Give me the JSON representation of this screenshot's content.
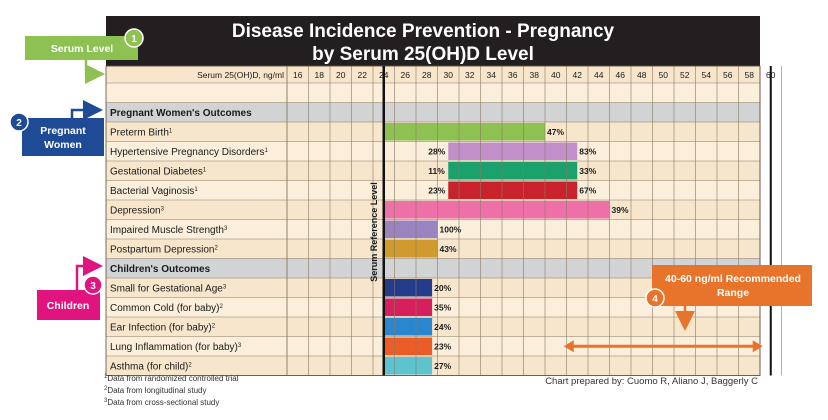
{
  "title_line1": "Disease Incidence Prevention - Pregnancy",
  "title_line2": "by Serum 25(OH)D Level",
  "axis_label": "Serum 25(OH)D, ng/ml",
  "reference_label": "Serum Reference Level",
  "credit": "Chart prepared by: Cuomo R, Aliano J, Baggerly C",
  "footnotes": [
    {
      "num": "1",
      "text": "Data from randomized controlled trial"
    },
    {
      "num": "2",
      "text": "Data from longitudinal study"
    },
    {
      "num": "3",
      "text": "Data from cross-sectional study"
    }
  ],
  "callouts": {
    "serum_level": {
      "label": "Serum Level",
      "badge": "1",
      "color": "#8dc152"
    },
    "pregnant_women": {
      "label_line1": "Pregnant",
      "label_line2": "Women",
      "badge": "2",
      "color": "#1f4a96"
    },
    "children": {
      "label": "Children",
      "badge": "3",
      "color": "#e0137f"
    },
    "recommended": {
      "label_line1": "40-60 ng/ml Recommended",
      "label_line2": "Range",
      "badge": "4",
      "color": "#e8732a"
    }
  },
  "chart_data": {
    "type": "bar",
    "orientation": "horizontal-range",
    "title": "Disease Incidence Prevention - Pregnancy by Serum 25(OH)D Level",
    "xlabel": "Serum 25(OH)D, ng/ml",
    "x_ticks": [
      16,
      18,
      20,
      22,
      24,
      26,
      28,
      30,
      32,
      34,
      36,
      38,
      40,
      42,
      44,
      46,
      48,
      50,
      52,
      54,
      56,
      58,
      60
    ],
    "reference_level": 25,
    "recommended_range": [
      40,
      60
    ],
    "sections": [
      {
        "name": "Pregnant Women's Outcomes",
        "rows": [
          {
            "label": "Preterm Birth",
            "sup": "1",
            "start": 25,
            "end": 40,
            "label_at": "end",
            "pct": "47%",
            "color": "#8dc152"
          },
          {
            "label": "Hypertensive Pregnancy Disorders",
            "sup": "1",
            "start": 31,
            "end": 43,
            "label_at": "both",
            "pct_start": "28%",
            "pct": "83%",
            "color": "#c28fc9"
          },
          {
            "label": "Gestational Diabetes",
            "sup": "1",
            "start": 31,
            "end": 43,
            "label_at": "both",
            "pct_start": "11%",
            "pct": "33%",
            "color": "#1aa16d"
          },
          {
            "label": "Bacterial Vaginosis",
            "sup": "1",
            "start": 31,
            "end": 43,
            "label_at": "both",
            "pct_start": "23%",
            "pct": "67%",
            "color": "#c8232d"
          },
          {
            "label": "Depression",
            "sup": "3",
            "start": 25,
            "end": 46,
            "label_at": "end",
            "pct": "39%",
            "color": "#ef6fa8"
          },
          {
            "label": "Impaired Muscle Strength",
            "sup": "3",
            "start": 25,
            "end": 30,
            "label_at": "end",
            "pct": "100%",
            "color": "#9b83bf"
          },
          {
            "label": "Postpartum Depression",
            "sup": "2",
            "start": 25,
            "end": 30,
            "label_at": "end",
            "pct": "43%",
            "color": "#d19a2e"
          }
        ]
      },
      {
        "name": "Children's Outcomes",
        "rows": [
          {
            "label": "Small for Gestational Age",
            "sup": "3",
            "start": 25,
            "end": 29.5,
            "label_at": "end",
            "pct": "20%",
            "color": "#233d8c"
          },
          {
            "label": "Common Cold (for baby)",
            "sup": "2",
            "start": 25,
            "end": 29.5,
            "label_at": "end",
            "pct": "35%",
            "color": "#d81f5e"
          },
          {
            "label": "Ear Infection (for baby)",
            "sup": "2",
            "start": 25,
            "end": 29.5,
            "label_at": "end",
            "pct": "24%",
            "color": "#2a87cf"
          },
          {
            "label": "Lung Inflammation (for baby)",
            "sup": "3",
            "start": 25,
            "end": 29.5,
            "label_at": "end",
            "pct": "23%",
            "color": "#eb5c27"
          },
          {
            "label": "Asthma (for child)",
            "sup": "2",
            "start": 25,
            "end": 29.5,
            "label_at": "end",
            "pct": "27%",
            "color": "#5cc3cf"
          }
        ]
      }
    ]
  }
}
